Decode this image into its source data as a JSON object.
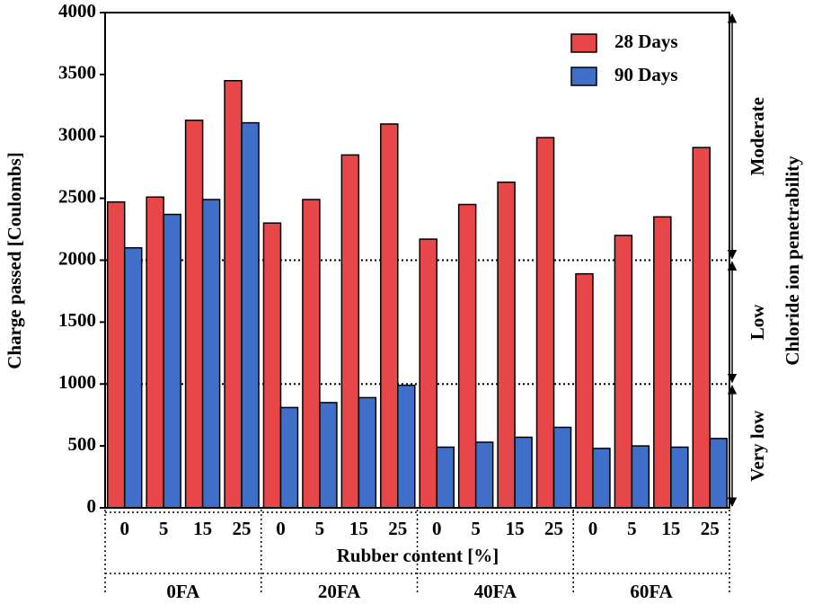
{
  "chart_data": {
    "type": "bar",
    "ylabel": "Charge passed [Coulombs]",
    "xlabel": "Rubber content [%]",
    "right_label": "Chloride ion penetrability",
    "categories": [
      "0",
      "5",
      "15",
      "25",
      "0",
      "5",
      "15",
      "25",
      "0",
      "5",
      "15",
      "25",
      "0",
      "5",
      "15",
      "25"
    ],
    "groups": [
      "0FA",
      "20FA",
      "40FA",
      "60FA"
    ],
    "series": [
      {
        "name": "28 Days",
        "color": "#e8474a",
        "values": [
          2470,
          2510,
          3130,
          3450,
          2300,
          2490,
          2850,
          3100,
          2170,
          2450,
          2630,
          2990,
          1890,
          2200,
          2350,
          2910
        ]
      },
      {
        "name": "90 Days",
        "color": "#3f6fc8",
        "values": [
          2100,
          2370,
          2490,
          3110,
          810,
          850,
          890,
          990,
          490,
          530,
          570,
          650,
          480,
          500,
          490,
          560
        ]
      }
    ],
    "regions": [
      {
        "label": "Very low",
        "range": [
          0,
          1000
        ]
      },
      {
        "label": "Low",
        "range": [
          1000,
          2000
        ]
      },
      {
        "label": "Moderate",
        "range": [
          2000,
          4000
        ]
      }
    ],
    "ylim": [
      0,
      4000
    ],
    "yticks": [
      0,
      500,
      1000,
      1500,
      2000,
      2500,
      3000,
      3500,
      4000
    ],
    "legend": "upper right"
  }
}
